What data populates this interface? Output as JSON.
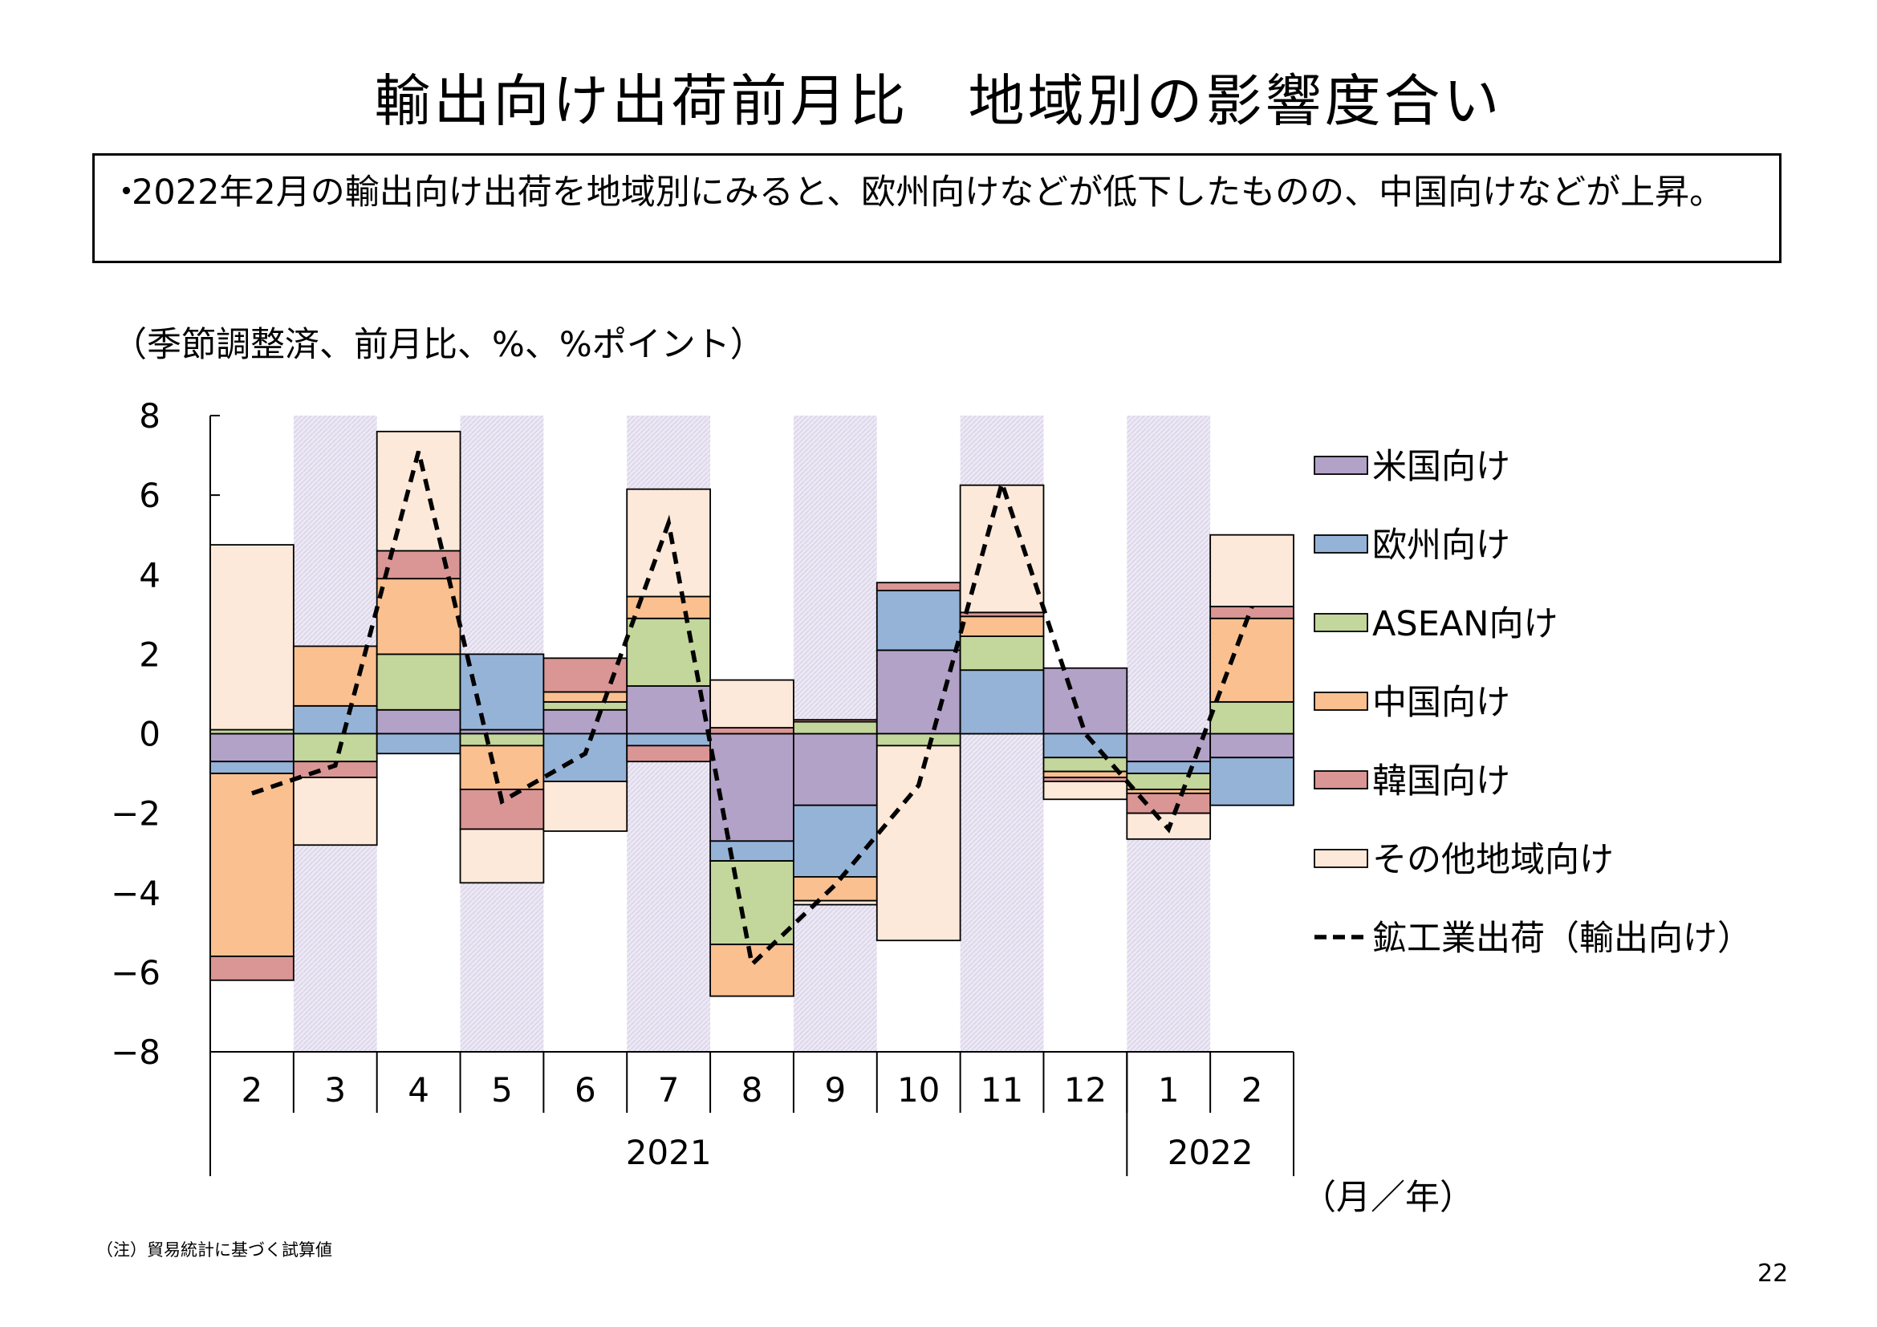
{
  "page": {
    "title": "輸出向け出荷前月比　地域別の影響度合い",
    "summary_bullet": "・",
    "summary": "2022年2月の輸出向け出荷を地域別にみると、欧州向けなどが低下したものの、中国向けなどが上昇。",
    "unit_label": "（季節調整済、前月比、%、%ポイント）",
    "axis_unit": "（月／年）",
    "footnote": "（注）貿易統計に基づく試算値",
    "page_number": "22"
  },
  "chart_data": {
    "type": "bar",
    "stacked": true,
    "categories": [
      "2",
      "3",
      "4",
      "5",
      "6",
      "7",
      "8",
      "9",
      "10",
      "11",
      "12",
      "1",
      "2"
    ],
    "year_groups": [
      {
        "label": "2021",
        "start": 0,
        "end": 10
      },
      {
        "label": "2022",
        "start": 11,
        "end": 12
      }
    ],
    "shaded_months": [
      1,
      3,
      5,
      7,
      9,
      11
    ],
    "ylim": [
      -8,
      8
    ],
    "yticks": [
      8,
      6,
      4,
      2,
      0,
      -2,
      -4,
      -6,
      -8
    ],
    "ytick_labels": [
      "8",
      "6",
      "4",
      "2",
      "0",
      "−2",
      "−4",
      "−6",
      "−8"
    ],
    "legend_position": "right",
    "series": [
      {
        "name": "米国向け",
        "color": "#b3a2c7",
        "values": [
          -0.7,
          0,
          0.6,
          0.1,
          0.6,
          1.2,
          -2.7,
          -1.8,
          2.1,
          0,
          1.65,
          -0.7,
          -0.6
        ]
      },
      {
        "name": "欧州向け",
        "color": "#95b3d7",
        "values": [
          -0.3,
          0.7,
          -0.5,
          1.9,
          -1.2,
          -0.3,
          -0.5,
          -1.8,
          1.5,
          1.6,
          -0.6,
          -0.3,
          -1.2
        ]
      },
      {
        "name": "ASEAN向け",
        "color": "#c3d69b",
        "values": [
          0.1,
          -0.7,
          1.4,
          -0.3,
          0.2,
          1.7,
          -2.1,
          0.3,
          -0.3,
          0.85,
          -0.35,
          -0.4,
          0.8
        ]
      },
      {
        "name": "中国向け",
        "color": "#fac090",
        "values": [
          -4.6,
          1.5,
          1.9,
          -1.1,
          0.25,
          0.55,
          -1.3,
          -0.6,
          0,
          0.5,
          -0.15,
          -0.1,
          2.1
        ]
      },
      {
        "name": "韓国向け",
        "color": "#d99694",
        "values": [
          -0.6,
          -0.4,
          0.7,
          -1.0,
          0.85,
          -0.4,
          0.15,
          0.05,
          0.2,
          0.1,
          -0.1,
          -0.5,
          0.3
        ]
      },
      {
        "name": "その他地域向け",
        "color": "#fde9d9",
        "values": [
          4.65,
          -1.7,
          3.0,
          -1.35,
          -1.25,
          2.7,
          1.2,
          -0.1,
          -4.9,
          3.2,
          -0.45,
          -0.65,
          1.8
        ]
      }
    ],
    "line": {
      "name": "鉱工業出荷（輸出向け）",
      "values": [
        -1.5,
        -0.8,
        7.1,
        -1.7,
        -0.5,
        5.3,
        -5.8,
        -3.8,
        -1.3,
        6.3,
        0,
        -2.4,
        3.2
      ]
    }
  }
}
